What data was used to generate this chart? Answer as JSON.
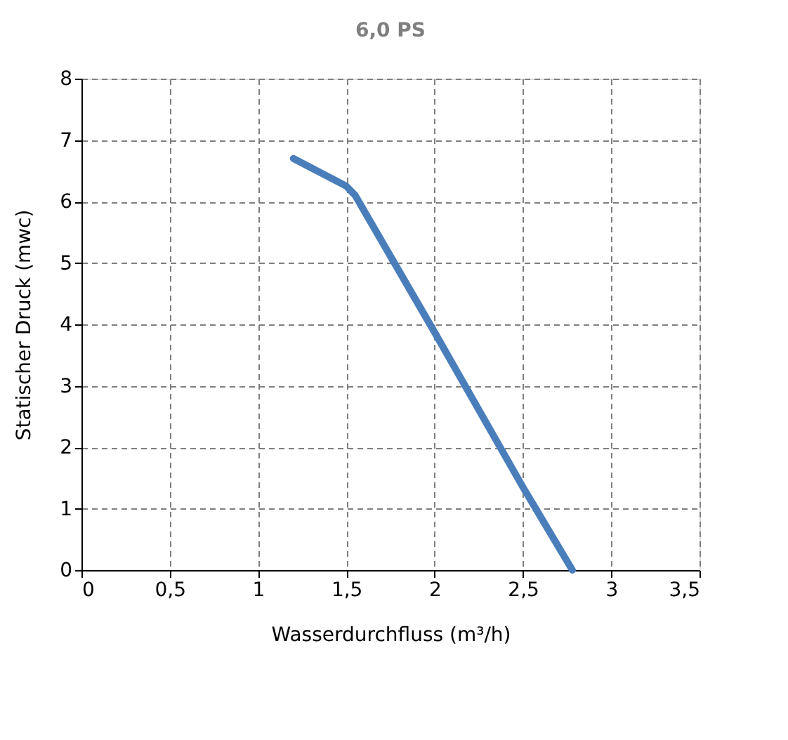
{
  "chart_data": {
    "type": "line",
    "title": "6,0 PS",
    "xlabel": "Wasserdurchfluss (m³/h)",
    "ylabel": "Statischer Druck (mwc)",
    "series": [
      {
        "color": "#4a7ebb",
        "x": [
          1.2,
          1.5,
          1.55,
          2.0,
          2.5,
          2.78
        ],
        "values": [
          6.7,
          6.25,
          6.1,
          3.87,
          1.35,
          0
        ]
      }
    ],
    "xlim": [
      0,
      3.5
    ],
    "xticks": [
      0,
      {
        "value": 0.5,
        "label": "0,5"
      },
      1,
      {
        "value": 1.5,
        "label": "1,5"
      },
      2,
      {
        "value": 2.5,
        "label": "2,5"
      },
      3,
      {
        "value": 3.5,
        "label": "3,5"
      }
    ],
    "ylim": [
      0,
      8
    ],
    "yticks": [
      0,
      1,
      2,
      3,
      4,
      5,
      6,
      7,
      8
    ],
    "grid": true,
    "line_style": "solid",
    "marker": "none"
  }
}
